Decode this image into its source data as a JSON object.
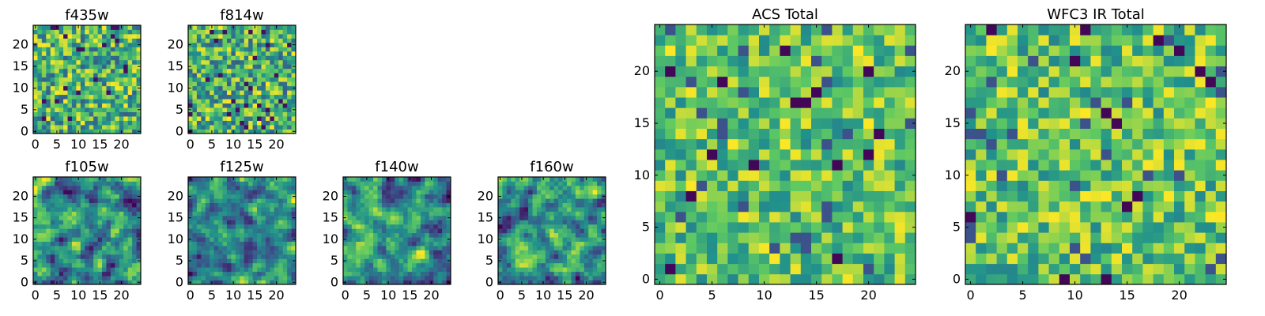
{
  "figure": {
    "colormap": "viridis",
    "colormap_stops": [
      "#440154",
      "#3b528b",
      "#21918c",
      "#5ec962",
      "#fde725"
    ]
  },
  "chart_data": [
    {
      "type": "heatmap",
      "title": "f435w",
      "grid_size": [
        25,
        25
      ],
      "x_ticks": [
        "0",
        "5",
        "10",
        "15",
        "20"
      ],
      "y_ticks": [
        "0",
        "5",
        "10",
        "15",
        "20"
      ],
      "ylim": [
        0,
        24
      ],
      "xlim": [
        0,
        24
      ],
      "seed": 11,
      "noise_style": "speckle"
    },
    {
      "type": "heatmap",
      "title": "f814w",
      "grid_size": [
        25,
        25
      ],
      "x_ticks": [
        "0",
        "5",
        "10",
        "15",
        "20"
      ],
      "y_ticks": [
        "0",
        "5",
        "10",
        "15",
        "20"
      ],
      "ylim": [
        0,
        24
      ],
      "xlim": [
        0,
        24
      ],
      "seed": 23,
      "noise_style": "speckle"
    },
    {
      "type": "heatmap",
      "title": "f105w",
      "grid_size": [
        25,
        25
      ],
      "x_ticks": [
        "0",
        "5",
        "10",
        "15",
        "20"
      ],
      "y_ticks": [
        "0",
        "5",
        "10",
        "15",
        "20"
      ],
      "ylim": [
        0,
        24
      ],
      "xlim": [
        0,
        24
      ],
      "seed": 37,
      "noise_style": "smooth"
    },
    {
      "type": "heatmap",
      "title": "f125w",
      "grid_size": [
        25,
        25
      ],
      "x_ticks": [
        "0",
        "5",
        "10",
        "15",
        "20"
      ],
      "y_ticks": [
        "0",
        "5",
        "10",
        "15",
        "20"
      ],
      "ylim": [
        0,
        24
      ],
      "xlim": [
        0,
        24
      ],
      "seed": 41,
      "noise_style": "smooth"
    },
    {
      "type": "heatmap",
      "title": "f140w",
      "grid_size": [
        25,
        25
      ],
      "x_ticks": [
        "0",
        "5",
        "10",
        "15",
        "20"
      ],
      "y_ticks": [
        "0",
        "5",
        "10",
        "15",
        "20"
      ],
      "ylim": [
        0,
        24
      ],
      "xlim": [
        0,
        24
      ],
      "seed": 53,
      "noise_style": "smooth"
    },
    {
      "type": "heatmap",
      "title": "f160w",
      "grid_size": [
        25,
        25
      ],
      "x_ticks": [
        "0",
        "5",
        "10",
        "15",
        "20"
      ],
      "y_ticks": [
        "0",
        "5",
        "10",
        "15",
        "20"
      ],
      "ylim": [
        0,
        24
      ],
      "xlim": [
        0,
        24
      ],
      "seed": 67,
      "noise_style": "smooth"
    },
    {
      "type": "heatmap",
      "title": "ACS Total",
      "grid_size": [
        25,
        25
      ],
      "x_ticks": [
        "0",
        "5",
        "10",
        "15",
        "20"
      ],
      "y_ticks": [
        "0",
        "5",
        "10",
        "15",
        "20"
      ],
      "ylim": [
        0,
        24
      ],
      "xlim": [
        0,
        24
      ],
      "seed": 79,
      "noise_style": "blocky"
    },
    {
      "type": "heatmap",
      "title": "WFC3 IR Total",
      "grid_size": [
        25,
        25
      ],
      "x_ticks": [
        "0",
        "5",
        "10",
        "15",
        "20"
      ],
      "y_ticks": [
        "0",
        "5",
        "10",
        "15",
        "20"
      ],
      "ylim": [
        0,
        24
      ],
      "xlim": [
        0,
        24
      ],
      "seed": 97,
      "noise_style": "blocky"
    }
  ]
}
